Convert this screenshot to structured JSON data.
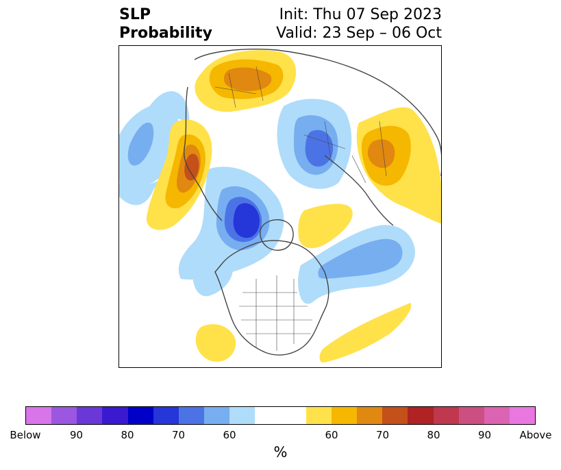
{
  "header": {
    "title_line1": "SLP",
    "title_line2": "Probability",
    "init_text": "Init: Thu 07 Sep 2023",
    "valid_text": "Valid: 23 Sep – 06 Oct"
  },
  "colorbar": {
    "colors": [
      "#d875e8",
      "#9b57e0",
      "#6a38d8",
      "#3a1ad0",
      "#0000c8",
      "#2537d8",
      "#4c73e6",
      "#76aef0",
      "#afdcfa",
      "#ffffff",
      "#ffffff",
      "#ffe14a",
      "#f5b700",
      "#e08810",
      "#c4501a",
      "#b02224",
      "#c0384e",
      "#cc4f82",
      "#dc63b2",
      "#e878e0"
    ],
    "tick_labels": [
      "Below",
      "90",
      "80",
      "70",
      "60",
      "60",
      "70",
      "80",
      "90",
      "Above"
    ],
    "unit_label": "%"
  },
  "map": {
    "colors": {
      "light_blue": "#afdcfa",
      "mid_blue": "#76aef0",
      "blue": "#4c73e6",
      "deep_blue": "#2537d8",
      "yellow": "#ffe14a",
      "gold": "#f5b700",
      "orange": "#e08810",
      "dark_orange": "#c4501a",
      "coast": "#444444"
    }
  }
}
